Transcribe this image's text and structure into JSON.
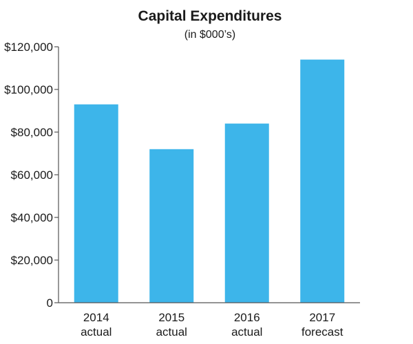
{
  "chart_data": {
    "type": "bar",
    "title": "Capital Expenditures",
    "subtitle": "(in $000’s)",
    "xlabel": "",
    "ylabel": "",
    "categories": [
      {
        "line1": "2014",
        "line2": "actual"
      },
      {
        "line1": "2015",
        "line2": "actual"
      },
      {
        "line1": "2016",
        "line2": "actual"
      },
      {
        "line1": "2017",
        "line2": "forecast"
      }
    ],
    "values": [
      93000,
      72000,
      84000,
      114000
    ],
    "ylim": [
      0,
      120000
    ],
    "yticks": [
      0,
      20000,
      40000,
      60000,
      80000,
      100000,
      120000
    ],
    "ytick_labels": [
      "0",
      "$20,000",
      "$40,000",
      "$60,000",
      "$80,000",
      "$100,000",
      "$120,000"
    ],
    "grid": false,
    "legend": "none",
    "bar_color": "#3db5ea",
    "axis_color": "#555555"
  }
}
